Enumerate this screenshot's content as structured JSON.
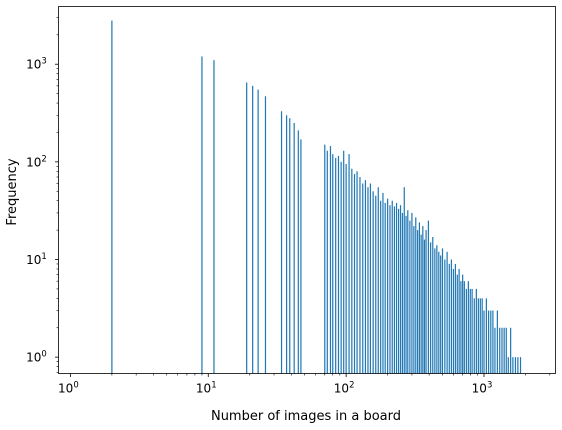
{
  "chart_data": {
    "type": "bar",
    "title": "",
    "xlabel": "Number of images in a board",
    "ylabel": "Frequency",
    "xscale": "log",
    "yscale": "log",
    "xlim": [
      0.82,
      3300
    ],
    "ylim": [
      0.68,
      3900
    ],
    "grid": false,
    "legend": "none",
    "bar_color": "#1f77b4",
    "x_ticks": [
      {
        "value": 1,
        "base": "10",
        "exp": "0"
      },
      {
        "value": 10,
        "base": "10",
        "exp": "1"
      },
      {
        "value": 100,
        "base": "10",
        "exp": "2"
      },
      {
        "value": 1000,
        "base": "10",
        "exp": "3"
      }
    ],
    "y_ticks": [
      {
        "value": 1,
        "base": "10",
        "exp": "0"
      },
      {
        "value": 10,
        "base": "10",
        "exp": "1"
      },
      {
        "value": 100,
        "base": "10",
        "exp": "2"
      },
      {
        "value": 1000,
        "base": "10",
        "exp": "3"
      }
    ],
    "series": [
      {
        "values": [
          [
            2,
            2800
          ],
          [
            9,
            1200
          ],
          [
            11,
            1100
          ],
          [
            19,
            650
          ],
          [
            21,
            600
          ],
          [
            23,
            550
          ],
          [
            26,
            470
          ],
          [
            34,
            330
          ],
          [
            37,
            300
          ],
          [
            39,
            280
          ],
          [
            42,
            250
          ],
          [
            45,
            210
          ],
          [
            47,
            170
          ],
          [
            70,
            150
          ],
          [
            73,
            130
          ],
          [
            77,
            145
          ],
          [
            80,
            120
          ],
          [
            84,
            110
          ],
          [
            88,
            115
          ],
          [
            92,
            100
          ],
          [
            96,
            130
          ],
          [
            100,
            95
          ],
          [
            105,
            120
          ],
          [
            110,
            85
          ],
          [
            115,
            75
          ],
          [
            120,
            80
          ],
          [
            126,
            70
          ],
          [
            132,
            60
          ],
          [
            138,
            65
          ],
          [
            144,
            55
          ],
          [
            150,
            60
          ],
          [
            157,
            50
          ],
          [
            164,
            45
          ],
          [
            171,
            55
          ],
          [
            178,
            40
          ],
          [
            185,
            48
          ],
          [
            192,
            38
          ],
          [
            200,
            42
          ],
          [
            208,
            36
          ],
          [
            216,
            40
          ],
          [
            224,
            35
          ],
          [
            232,
            38
          ],
          [
            240,
            33
          ],
          [
            248,
            36
          ],
          [
            256,
            30
          ],
          [
            264,
            55
          ],
          [
            272,
            28
          ],
          [
            280,
            32
          ],
          [
            290,
            25
          ],
          [
            300,
            30
          ],
          [
            310,
            22
          ],
          [
            320,
            27
          ],
          [
            330,
            20
          ],
          [
            340,
            24
          ],
          [
            350,
            18
          ],
          [
            360,
            22
          ],
          [
            370,
            16
          ],
          [
            380,
            20
          ],
          [
            395,
            25
          ],
          [
            410,
            15
          ],
          [
            425,
            17
          ],
          [
            440,
            13
          ],
          [
            455,
            14
          ],
          [
            470,
            12
          ],
          [
            485,
            11
          ],
          [
            500,
            13
          ],
          [
            520,
            10
          ],
          [
            540,
            12
          ],
          [
            560,
            9
          ],
          [
            580,
            10
          ],
          [
            600,
            8
          ],
          [
            620,
            9
          ],
          [
            640,
            7
          ],
          [
            660,
            8
          ],
          [
            680,
            6
          ],
          [
            700,
            7
          ],
          [
            720,
            6
          ],
          [
            745,
            5
          ],
          [
            770,
            6
          ],
          [
            795,
            5
          ],
          [
            820,
            5
          ],
          [
            850,
            4
          ],
          [
            880,
            5
          ],
          [
            910,
            4
          ],
          [
            940,
            4
          ],
          [
            970,
            4
          ],
          [
            1000,
            3
          ],
          [
            1040,
            4
          ],
          [
            1080,
            3
          ],
          [
            1120,
            3
          ],
          [
            1160,
            3
          ],
          [
            1200,
            2
          ],
          [
            1250,
            3
          ],
          [
            1300,
            2
          ],
          [
            1350,
            2
          ],
          [
            1400,
            2
          ],
          [
            1450,
            2
          ],
          [
            1500,
            1
          ],
          [
            1560,
            2
          ],
          [
            1620,
            1
          ],
          [
            1690,
            1
          ],
          [
            1760,
            1
          ],
          [
            1840,
            1
          ]
        ]
      }
    ]
  }
}
